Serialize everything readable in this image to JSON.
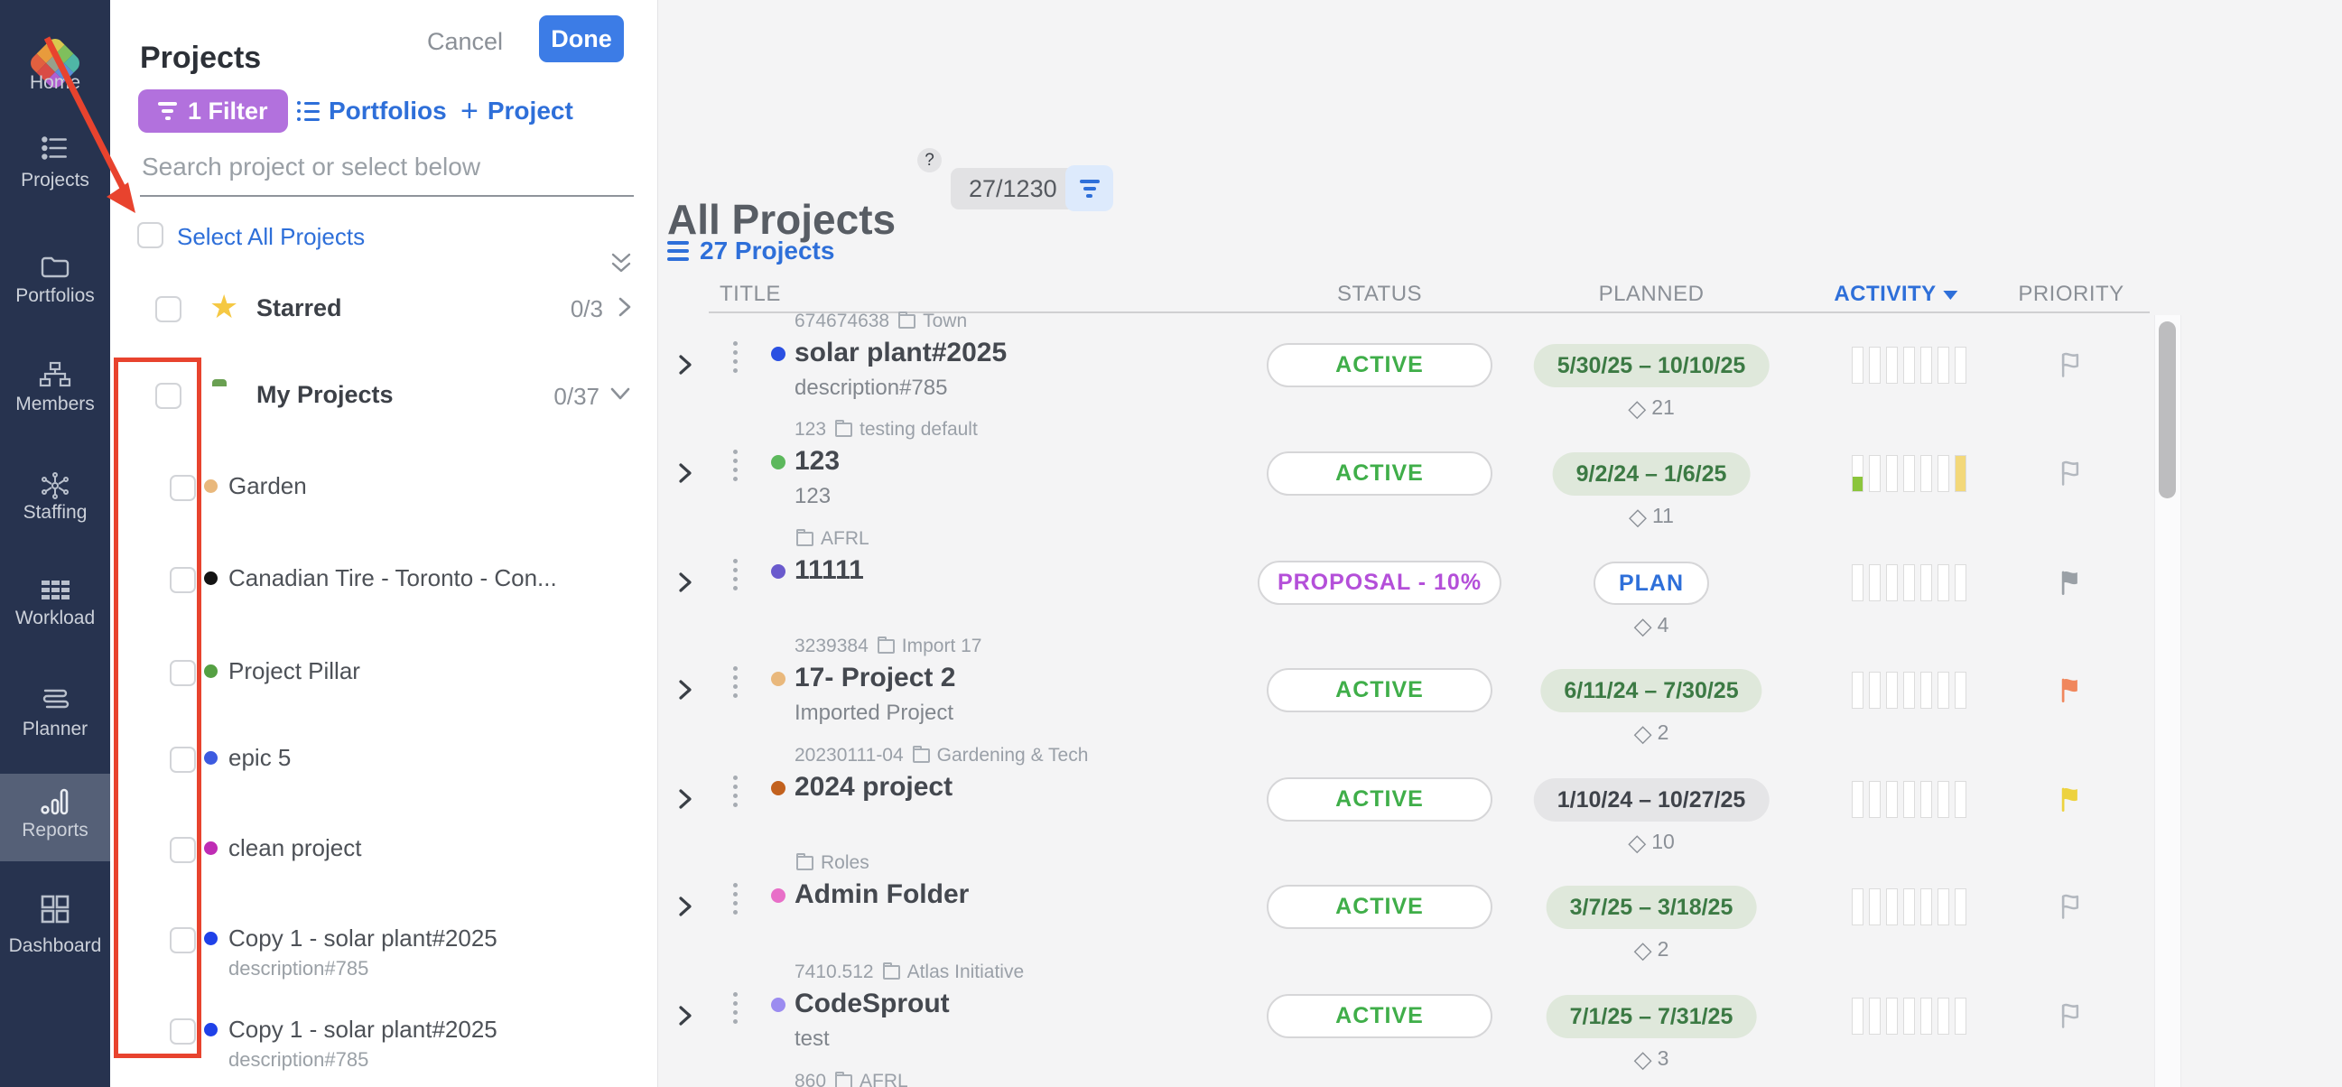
{
  "annotation": {
    "color": "#e8432e"
  },
  "sidebar": {
    "logo_tiles": [
      "#d9c84f",
      "#7fbf5c",
      "#4fb6a6",
      "#e89b3c",
      "#97a08b",
      "#5c8fd9",
      "#e2603f",
      "#d94b45",
      "#b05fd0"
    ],
    "items": [
      {
        "label": "Home",
        "icon": "home-logo"
      },
      {
        "label": "Projects",
        "icon": "projects-list"
      },
      {
        "label": "Portfolios",
        "icon": "folder-outline"
      },
      {
        "label": "Members",
        "icon": "org-chart"
      },
      {
        "label": "Staffing",
        "icon": "hub-spokes"
      },
      {
        "label": "Workload",
        "icon": "grid-bars"
      },
      {
        "label": "Planner",
        "icon": "stacked-rows"
      },
      {
        "label": "Reports",
        "icon": "bar-chart",
        "active": true
      },
      {
        "label": "Dashboard",
        "icon": "four-squares"
      }
    ]
  },
  "panel": {
    "title": "Projects",
    "cancel_label": "Cancel",
    "done_label": "Done",
    "filter_chip_label": "1 Filter",
    "portfolios_label": "Portfolios",
    "add_project_label": "Project",
    "search_placeholder": "Search project or select below",
    "select_all_label": "Select All Projects",
    "groups": [
      {
        "name": "Starred",
        "count": "0/3",
        "icon": "star-icon",
        "color": "#f5c843"
      },
      {
        "name": "My Projects",
        "count": "0/37",
        "icon": "green-folder-icon",
        "color": "#6aa052"
      }
    ],
    "items": [
      {
        "label": "Garden",
        "dot_color": "#e9b87c"
      },
      {
        "label": "Canadian Tire - Toronto - Con...",
        "dot_color": "#141414"
      },
      {
        "label": "Project Pillar",
        "dot_color": "#55a043"
      },
      {
        "label": "epic 5",
        "dot_color": "#3d5be0"
      },
      {
        "label": "clean project",
        "dot_color": "#bf2cb4"
      },
      {
        "label": "Copy 1 - solar plant#2025",
        "subtitle": "description#785",
        "dot_color": "#1f41e8"
      },
      {
        "label": "Copy 1 - solar plant#2025",
        "subtitle": "description#785",
        "dot_color": "#1f41e8"
      }
    ]
  },
  "main": {
    "title": "All Projects",
    "help_badge": "?",
    "count_pill": "27/1230",
    "projects_link": "27 Projects",
    "columns": [
      {
        "label": "TITLE"
      },
      {
        "label": "STATUS"
      },
      {
        "label": "PLANNED"
      },
      {
        "label": "ACTIVITY",
        "sorted": true
      },
      {
        "label": "PRIORITY"
      }
    ],
    "status_colors": {
      "active": "#3fae49",
      "proposal": "#b44fd9"
    },
    "flag_colors": {
      "gray": "#9aa0a6",
      "orange": "#f0875d",
      "yellow": "#edd23e",
      "outline": "#b3b8bf"
    },
    "rows": [
      {
        "meta_id": "674674638",
        "folder": "Town",
        "title": "solar plant#2025",
        "subtitle": "description#785",
        "dot_color": "#2b50e2",
        "status": {
          "label": "ACTIVE",
          "type": "active"
        },
        "planned": {
          "label": "5/30/25 – 10/10/25",
          "type": "green"
        },
        "milestones": "21",
        "bar_fills": [],
        "flag": "outline"
      },
      {
        "meta_id": "123",
        "folder": "testing default",
        "title": "123",
        "subtitle": "123",
        "dot_color": "#5cb85c",
        "status": {
          "label": "ACTIVE",
          "type": "active"
        },
        "planned": {
          "label": "9/2/24 – 1/6/25",
          "type": "green"
        },
        "milestones": "11",
        "bar_fills": [
          {
            "bar": 0,
            "pct": 42,
            "color": "#8bc53c"
          },
          {
            "bar": 6,
            "pct": 100,
            "color": "#f3d87a"
          }
        ],
        "flag": "outline"
      },
      {
        "folder": "AFRL",
        "title": "11111",
        "dot_color": "#6a5acd",
        "status": {
          "label": "PROPOSAL - 10%",
          "type": "proposal"
        },
        "planned": {
          "label": "PLAN",
          "type": "plan"
        },
        "milestones": "4",
        "bar_fills": [],
        "flag": "gray"
      },
      {
        "meta_id": "3239384",
        "folder": "Import 17",
        "title": "17- Project 2",
        "subtitle": "Imported Project",
        "dot_color": "#e9b87c",
        "status": {
          "label": "ACTIVE",
          "type": "active"
        },
        "planned": {
          "label": "6/11/24 – 7/30/25",
          "type": "green"
        },
        "milestones": "2",
        "bar_fills": [],
        "flag": "orange"
      },
      {
        "meta_id": "20230111-04",
        "folder": "Gardening & Tech",
        "title": "2024 project",
        "dot_color": "#c2611e",
        "status": {
          "label": "ACTIVE",
          "type": "active"
        },
        "planned": {
          "label": "1/10/24 – 10/27/25",
          "type": "gray"
        },
        "milestones": "10",
        "bar_fills": [],
        "flag": "yellow"
      },
      {
        "folder": "Roles",
        "title": "Admin Folder",
        "dot_color": "#e86fc8",
        "status": {
          "label": "ACTIVE",
          "type": "active"
        },
        "planned": {
          "label": "3/7/25 – 3/18/25",
          "type": "green"
        },
        "milestones": "2",
        "bar_fills": [],
        "flag": "outline"
      },
      {
        "meta_id": "7410.512",
        "folder": "Atlas Initiative",
        "title": "CodeSprout",
        "subtitle": "test",
        "dot_color": "#9b8cf0",
        "status": {
          "label": "ACTIVE",
          "type": "active"
        },
        "planned": {
          "label": "7/1/25 – 7/31/25",
          "type": "green"
        },
        "milestones": "3",
        "bar_fills": [],
        "flag": "outline"
      }
    ],
    "partial_row": {
      "meta_id": "860",
      "folder": "AFRL"
    }
  }
}
